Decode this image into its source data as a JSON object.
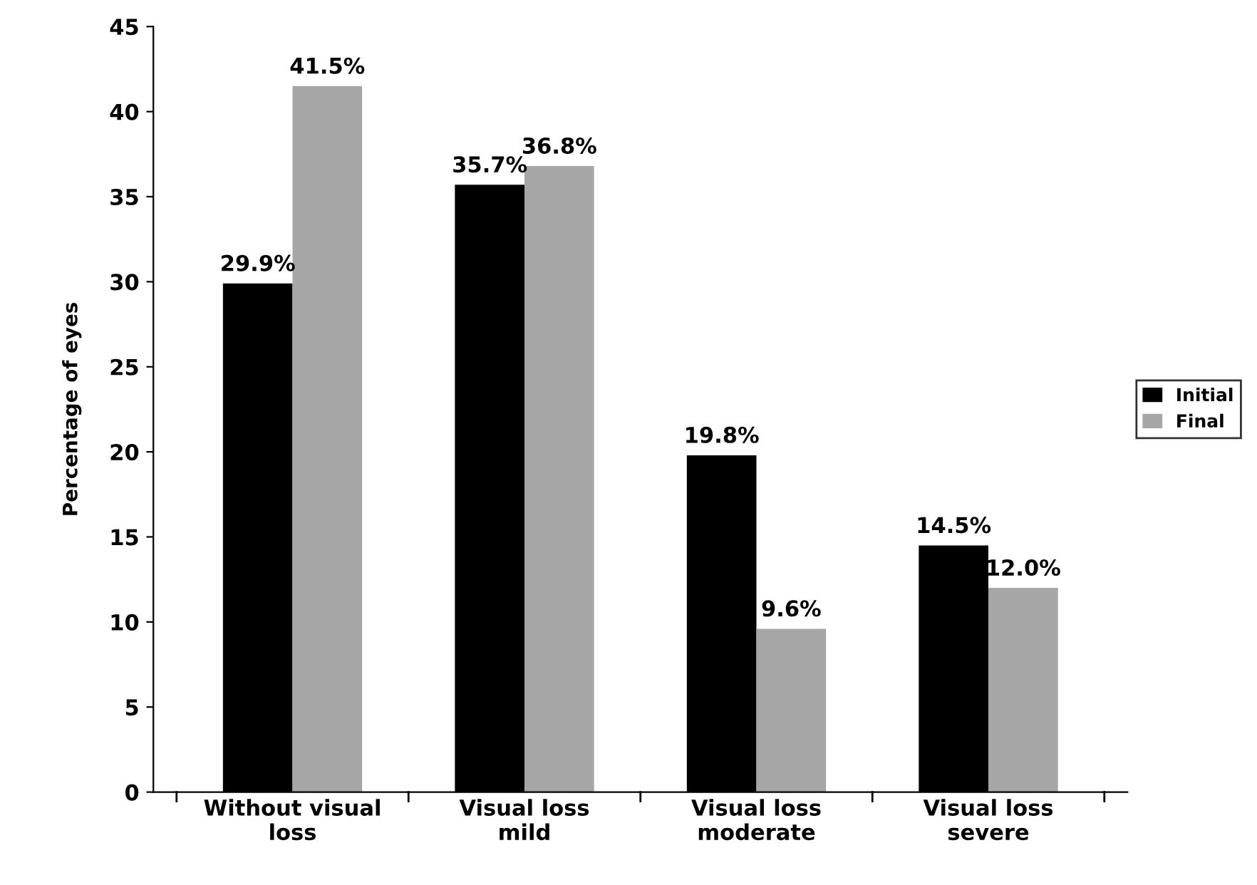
{
  "chart_data": {
    "type": "bar",
    "ylabel": "Percentage of eyes",
    "categories": [
      "Without visual\nloss",
      "Visual loss\nmild",
      "Visual loss\nmoderate",
      "Visual loss\nsevere"
    ],
    "series": [
      {
        "name": "Initial",
        "color": "#000000",
        "values": [
          29.9,
          35.7,
          19.8,
          14.5
        ],
        "value_labels": [
          "29.9%",
          "35.7%",
          "19.8%",
          "14.5%"
        ]
      },
      {
        "name": "Final",
        "color": "#a6a6a6",
        "values": [
          41.5,
          36.8,
          9.6,
          12.0
        ],
        "value_labels": [
          "41.5%",
          "36.8%",
          "9.6%",
          "12.0%"
        ]
      }
    ],
    "ylim": [
      0,
      45
    ],
    "yticks": [
      0,
      5,
      10,
      15,
      20,
      25,
      30,
      35,
      40,
      45
    ],
    "grid": false,
    "legend": "right"
  }
}
